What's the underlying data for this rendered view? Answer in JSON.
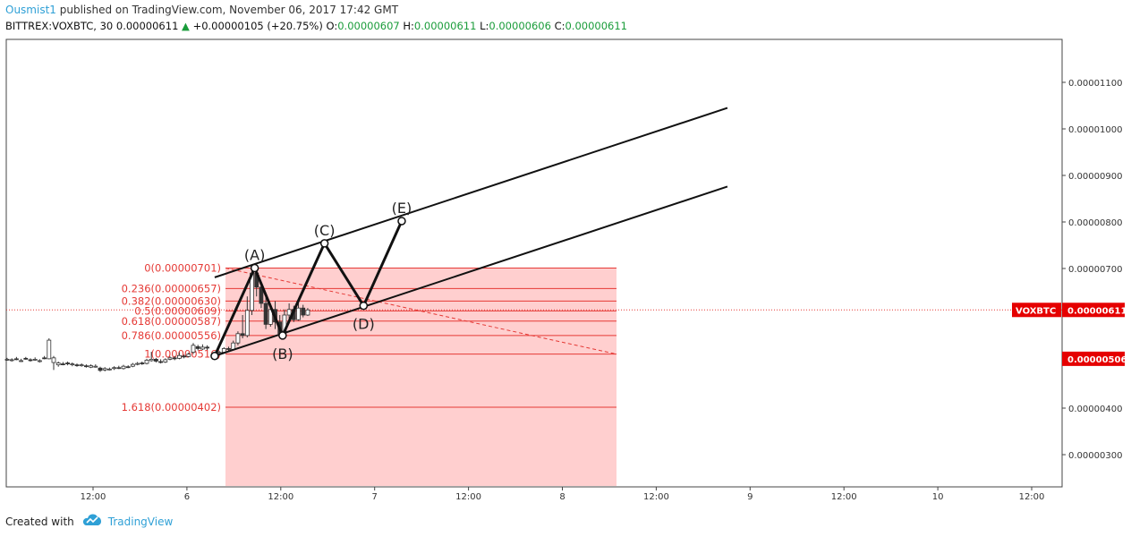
{
  "header": {
    "user": "Ousmist1",
    "published": " published on TradingView.com, November 06, 2017 17:42 GMT",
    "symbol_info": "BITTREX:VOXBTC, 30",
    "last": "0.00000611",
    "arrow": "▲",
    "change": "+0.00000105 (+20.75%)",
    "o_label": "O:",
    "o_val": "0.00000607",
    "h_label": "H:",
    "h_val": "0.00000611",
    "l_label": "L:",
    "l_val": "0.00000606",
    "c_label": "C:",
    "c_val": "0.00000611"
  },
  "footer": {
    "created_with": "Created with",
    "brand": "TradingView"
  },
  "colors": {
    "fib": "#e53935",
    "fib_fill": "#ffcccc",
    "up": "#1a9c3a",
    "accent": "#2fa0d6",
    "pattern": "#111111"
  },
  "chart_data": {
    "type": "candlestick",
    "symbol": "BITTREX:VOXBTC",
    "interval": "30",
    "y_ticks": [
      "0.00001100",
      "0.00001000",
      "0.00000900",
      "0.00000800",
      "0.00000700",
      "0.00000400",
      "0.00000300"
    ],
    "x_ticks": [
      "12:00",
      "6",
      "12:00",
      "7",
      "12:00",
      "8",
      "12:00",
      "9",
      "12:00",
      "10",
      "12:00"
    ],
    "ylim": [
      2.4e-06,
      1.19e-05
    ],
    "last_price_label": {
      "name": "VOXBTC",
      "value": "0.00000611"
    },
    "marker_price_label": "0.00000506",
    "fib_levels": [
      {
        "label": "0(0.00000701)",
        "value": 7.01e-06
      },
      {
        "label": "0.236(0.00000657)",
        "value": 6.57e-06
      },
      {
        "label": "0.382(0.00000630)",
        "value": 6.3e-06
      },
      {
        "label": "0.5(0.00000609)",
        "value": 6.09e-06
      },
      {
        "label": "0.618(0.00000587)",
        "value": 5.87e-06
      },
      {
        "label": "0.786(0.00000556)",
        "value": 5.56e-06
      },
      {
        "label": "1(0.00000516)",
        "value": 5.16e-06
      },
      {
        "label": "1.618(0.00000402)",
        "value": 4.02e-06
      }
    ],
    "pattern_points": [
      {
        "label": "",
        "x": 2.23,
        "y": 5.12e-06
      },
      {
        "label": "(A)",
        "x": 2.66,
        "y": 7.01e-06
      },
      {
        "label": "(B)",
        "x": 2.96,
        "y": 5.56e-06
      },
      {
        "label": "(C)",
        "x": 3.41,
        "y": 7.54e-06
      },
      {
        "label": "(D)",
        "x": 3.83,
        "y": 6.2e-06
      },
      {
        "label": "(E)",
        "x": 4.24,
        "y": 8.02e-06
      }
    ],
    "channel": {
      "upper": [
        [
          2.23,
          6.81e-06
        ],
        [
          7.74,
          1.045e-05
        ]
      ],
      "lower": [
        [
          2.23,
          5.12e-06
        ],
        [
          7.74,
          8.76e-06
        ]
      ]
    },
    "candles": [
      [
        0.0,
        505,
        505,
        508,
        502
      ],
      [
        0.05,
        503,
        504,
        507,
        500
      ],
      [
        0.1,
        506,
        505,
        510,
        503
      ],
      [
        0.15,
        502,
        502,
        506,
        499
      ],
      [
        0.2,
        507,
        506,
        510,
        504
      ],
      [
        0.25,
        504,
        502,
        507,
        500
      ],
      [
        0.3,
        505,
        505,
        509,
        502
      ],
      [
        0.35,
        500,
        502,
        505,
        498
      ],
      [
        0.4,
        508,
        507,
        512,
        505
      ],
      [
        0.45,
        506,
        546,
        550,
        505
      ],
      [
        0.5,
        498,
        508,
        512,
        482
      ],
      [
        0.55,
        493,
        497,
        500,
        489
      ],
      [
        0.6,
        495,
        494,
        499,
        492
      ],
      [
        0.65,
        497,
        495,
        500,
        492
      ],
      [
        0.7,
        494,
        495,
        498,
        490
      ],
      [
        0.75,
        493,
        492,
        496,
        489
      ],
      [
        0.8,
        492,
        493,
        496,
        489
      ],
      [
        0.85,
        491,
        490,
        494,
        487
      ],
      [
        0.9,
        488,
        491,
        494,
        486
      ],
      [
        0.95,
        490,
        490,
        494,
        487
      ],
      [
        1.0,
        486,
        481,
        489,
        478
      ],
      [
        1.05,
        482,
        485,
        488,
        479
      ],
      [
        1.1,
        484,
        484,
        487,
        481
      ],
      [
        1.15,
        485,
        487,
        490,
        482
      ],
      [
        1.2,
        487,
        486,
        491,
        484
      ],
      [
        1.25,
        485,
        490,
        493,
        483
      ],
      [
        1.3,
        489,
        488,
        492,
        486
      ],
      [
        1.35,
        490,
        494,
        497,
        488
      ],
      [
        1.4,
        494,
        496,
        499,
        492
      ],
      [
        1.45,
        497,
        495,
        500,
        493
      ],
      [
        1.5,
        496,
        503,
        506,
        494
      ],
      [
        1.55,
        502,
        505,
        521,
        500
      ],
      [
        1.6,
        505,
        501,
        508,
        498
      ],
      [
        1.65,
        500,
        499,
        505,
        496
      ],
      [
        1.7,
        499,
        504,
        507,
        497
      ],
      [
        1.75,
        505,
        508,
        511,
        503
      ],
      [
        1.8,
        508,
        506,
        512,
        503
      ],
      [
        1.85,
        507,
        513,
        520,
        505
      ],
      [
        1.9,
        512,
        510,
        515,
        507
      ],
      [
        1.95,
        511,
        516,
        519,
        509
      ],
      [
        2.0,
        520,
        535,
        540,
        516
      ],
      [
        2.05,
        532,
        528,
        536,
        524
      ],
      [
        2.1,
        527,
        531,
        537,
        525
      ],
      [
        2.15,
        531,
        529,
        535,
        525
      ],
      [
        2.23,
        512,
        518,
        521,
        510
      ],
      [
        2.28,
        518,
        520,
        523,
        515
      ],
      [
        2.33,
        520,
        528,
        531,
        518
      ],
      [
        2.38,
        528,
        526,
        532,
        523
      ],
      [
        2.43,
        526,
        540,
        545,
        524
      ],
      [
        2.48,
        540,
        560,
        565,
        535
      ],
      [
        2.53,
        560,
        556,
        600,
        550
      ],
      [
        2.58,
        556,
        610,
        640,
        552
      ],
      [
        2.63,
        610,
        690,
        701,
        600
      ],
      [
        2.68,
        690,
        660,
        695,
        640
      ],
      [
        2.73,
        660,
        625,
        670,
        615
      ],
      [
        2.78,
        625,
        580,
        640,
        570
      ],
      [
        2.83,
        580,
        612,
        620,
        575
      ],
      [
        2.88,
        612,
        585,
        630,
        570
      ],
      [
        2.93,
        585,
        560,
        600,
        556
      ],
      [
        2.98,
        560,
        600,
        612,
        556
      ],
      [
        3.03,
        600,
        612,
        625,
        590
      ],
      [
        3.08,
        612,
        590,
        620,
        585
      ],
      [
        3.13,
        590,
        615,
        628,
        588
      ],
      [
        3.18,
        615,
        600,
        622,
        595
      ],
      [
        3.23,
        600,
        611,
        615,
        598
      ]
    ]
  }
}
